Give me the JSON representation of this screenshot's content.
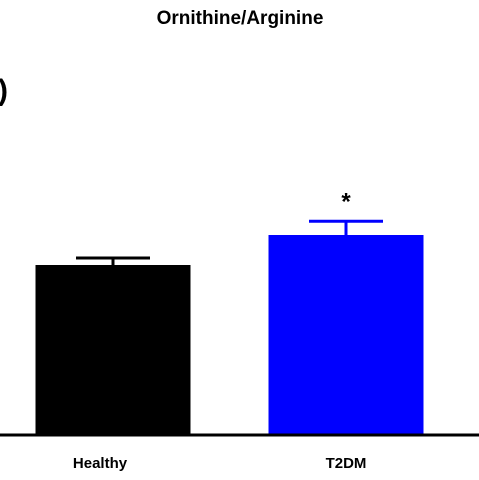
{
  "chart_data": {
    "type": "bar",
    "title": "Ornithine/Arginine",
    "left_fragment": ")",
    "categories": [
      "Healthy",
      "T2DM"
    ],
    "values": [
      0.68,
      0.8
    ],
    "errors": [
      0.028,
      0.055
    ],
    "colors": [
      "#000000",
      "#0000ff"
    ],
    "annotations": [
      "",
      "*"
    ],
    "ylim": [
      0,
      1.3
    ],
    "grid": false
  }
}
